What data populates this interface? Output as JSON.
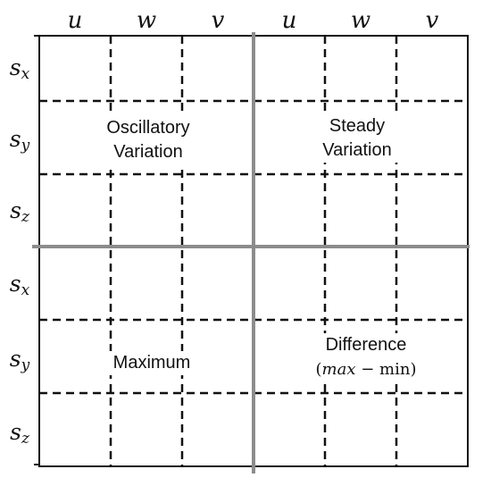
{
  "columns": {
    "left": [
      "u",
      "w",
      "v"
    ],
    "right": [
      "u",
      "w",
      "v"
    ]
  },
  "rows": {
    "top": [
      {
        "base": "s",
        "sub": "x"
      },
      {
        "base": "s",
        "sub": "y"
      },
      {
        "base": "s",
        "sub": "z"
      }
    ],
    "bottom": [
      {
        "base": "s",
        "sub": "x"
      },
      {
        "base": "s",
        "sub": "y"
      },
      {
        "base": "s",
        "sub": "z"
      }
    ]
  },
  "quadrants": {
    "top_left": {
      "line1": "Oscillatory",
      "line2": "Variation"
    },
    "top_right": {
      "line1": "Steady",
      "line2": "Variation"
    },
    "bottom_left": {
      "line1": "Maximum"
    },
    "bottom_right": {
      "line1": "Difference",
      "line2": {
        "open": "(",
        "max": "max",
        "minus": " − ",
        "min": "min",
        "close": ")"
      }
    }
  },
  "colors": {
    "divider": "#8c8c8c",
    "grid": "#111111",
    "border": "#111111"
  }
}
